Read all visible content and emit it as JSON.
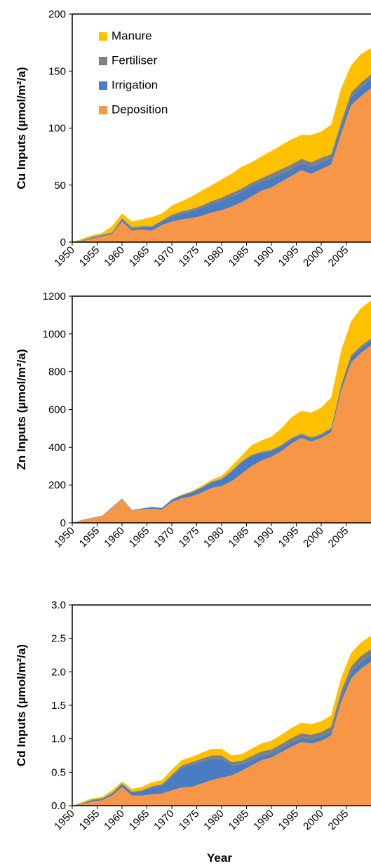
{
  "chart_data": [
    {
      "type": "stacked_area",
      "y_label": "Cu Inputs (µmol/m²/a)",
      "legend": "upper left",
      "x": [
        1950,
        1952,
        1954,
        1956,
        1958,
        1960,
        1962,
        1964,
        1966,
        1968,
        1970,
        1972,
        1974,
        1976,
        1978,
        1980,
        1982,
        1984,
        1986,
        1988,
        1990,
        1992,
        1994,
        1996,
        1998,
        2000,
        2002,
        2004,
        2006,
        2008,
        2010
      ],
      "xlim": [
        1950,
        2010
      ],
      "xticks": [
        1950,
        1955,
        1960,
        1965,
        1970,
        1975,
        1980,
        1985,
        1990,
        1995,
        2000,
        2005
      ],
      "ylim": [
        0,
        200
      ],
      "yticks": [
        0,
        50,
        100,
        150,
        200
      ],
      "series": [
        {
          "name": "Deposition",
          "color": "#f79646",
          "values": [
            0,
            1,
            3,
            5,
            7,
            18,
            10,
            11,
            10,
            15,
            18,
            20,
            21,
            23,
            26,
            28,
            31,
            35,
            40,
            45,
            48,
            53,
            58,
            63,
            60,
            64,
            68,
            95,
            120,
            128,
            135
          ]
        },
        {
          "name": "Irrigation",
          "color": "#4a7cc4",
          "values": [
            0,
            0.5,
            1,
            1,
            1,
            2,
            2,
            2,
            3,
            3,
            4,
            5,
            6,
            7,
            8,
            8,
            9,
            9,
            9,
            8,
            8,
            7,
            6,
            6,
            6,
            6,
            5,
            6,
            7,
            8,
            8
          ]
        },
        {
          "name": "Fertiliser",
          "color": "#808080",
          "values": [
            0,
            0.3,
            0.5,
            0.5,
            0.5,
            1,
            1,
            1,
            1,
            1,
            2,
            2,
            2,
            2,
            2,
            3,
            3,
            3,
            3,
            3,
            4,
            4,
            4,
            4,
            4,
            4,
            4,
            4,
            4,
            4,
            4
          ]
        },
        {
          "name": "Manure",
          "color": "#ffc000",
          "values": [
            0,
            1.2,
            1.5,
            1.5,
            5.5,
            4,
            5,
            6,
            8,
            6,
            8,
            9,
            11,
            13,
            14,
            16,
            17,
            19,
            18,
            19,
            20,
            21,
            22,
            21,
            24,
            23,
            26,
            30,
            24,
            25,
            23
          ]
        }
      ]
    },
    {
      "type": "stacked_area",
      "y_label": "Zn Inputs (µmol/m²/a)",
      "x": [
        1950,
        1952,
        1954,
        1956,
        1958,
        1960,
        1962,
        1964,
        1966,
        1968,
        1970,
        1972,
        1974,
        1976,
        1978,
        1980,
        1982,
        1984,
        1986,
        1988,
        1990,
        1992,
        1994,
        1996,
        1998,
        2000,
        2002,
        2004,
        2006,
        2008,
        2010
      ],
      "xlim": [
        1950,
        2010
      ],
      "xticks": [
        1950,
        1955,
        1960,
        1965,
        1970,
        1975,
        1980,
        1985,
        1990,
        1995,
        2000,
        2005
      ],
      "ylim": [
        0,
        1200
      ],
      "yticks": [
        0,
        200,
        400,
        600,
        800,
        1000,
        1200
      ],
      "series": [
        {
          "color": "#f79646",
          "values": [
            0,
            15,
            25,
            35,
            80,
            125,
            65,
            70,
            75,
            70,
            110,
            130,
            140,
            160,
            185,
            195,
            220,
            260,
            300,
            330,
            350,
            380,
            420,
            450,
            430,
            450,
            480,
            700,
            850,
            900,
            940
          ]
        },
        {
          "color": "#4a7cc4",
          "values": [
            0,
            1,
            2,
            2,
            3,
            3,
            3,
            5,
            8,
            8,
            12,
            15,
            20,
            25,
            30,
            35,
            50,
            60,
            55,
            40,
            30,
            25,
            20,
            15,
            15,
            12,
            15,
            20,
            25,
            25,
            25
          ]
        },
        {
          "color": "#808080",
          "values": [
            0,
            0,
            0,
            0,
            0,
            0,
            0,
            1,
            1,
            1,
            2,
            2,
            3,
            3,
            3,
            4,
            5,
            5,
            5,
            6,
            6,
            7,
            8,
            8,
            8,
            8,
            8,
            10,
            12,
            12,
            12
          ]
        },
        {
          "color": "#ffc000",
          "values": [
            0,
            0,
            0,
            0,
            0,
            0,
            0,
            0,
            0,
            1,
            2,
            3,
            5,
            8,
            10,
            15,
            25,
            30,
            50,
            60,
            70,
            88,
            110,
            120,
            130,
            140,
            160,
            180,
            180,
            200,
            200
          ]
        }
      ]
    },
    {
      "type": "stacked_area",
      "y_label": "Cd Inputs (µmol/m²/a)",
      "x_label": "Year",
      "x": [
        1950,
        1952,
        1954,
        1956,
        1958,
        1960,
        1962,
        1964,
        1966,
        1968,
        1970,
        1972,
        1974,
        1976,
        1978,
        1980,
        1982,
        1984,
        1986,
        1988,
        1990,
        1992,
        1994,
        1996,
        1998,
        2000,
        2002,
        2004,
        2006,
        2008,
        2010
      ],
      "xlim": [
        1950,
        2010
      ],
      "xticks": [
        1950,
        1955,
        1960,
        1965,
        1970,
        1975,
        1980,
        1985,
        1990,
        1995,
        2000,
        2005
      ],
      "ylim": [
        0,
        3
      ],
      "yticks": [
        {
          "value": 0,
          "label": "0.0"
        },
        0.5,
        {
          "value": 1,
          "label": "1.0"
        },
        1.5,
        {
          "value": 2,
          "label": "2.0"
        },
        2.5,
        {
          "value": 3,
          "label": "3.0"
        }
      ],
      "series": [
        {
          "color": "#f79646",
          "values": [
            0,
            0.02,
            0.06,
            0.08,
            0.15,
            0.28,
            0.15,
            0.15,
            0.17,
            0.18,
            0.23,
            0.27,
            0.28,
            0.33,
            0.38,
            0.42,
            0.45,
            0.52,
            0.6,
            0.68,
            0.72,
            0.8,
            0.88,
            0.95,
            0.93,
            0.97,
            1.05,
            1.55,
            1.9,
            2.05,
            2.15
          ]
        },
        {
          "color": "#4a7cc4",
          "values": [
            0,
            0.01,
            0.02,
            0.02,
            0.03,
            0.04,
            0.05,
            0.07,
            0.1,
            0.12,
            0.2,
            0.3,
            0.33,
            0.33,
            0.32,
            0.28,
            0.15,
            0.1,
            0.08,
            0.07,
            0.06,
            0.06,
            0.06,
            0.06,
            0.06,
            0.06,
            0.06,
            0.08,
            0.1,
            0.1,
            0.1
          ]
        },
        {
          "color": "#808080",
          "values": [
            0,
            0.005,
            0.01,
            0.01,
            0.01,
            0.01,
            0.01,
            0.01,
            0.02,
            0.02,
            0.03,
            0.03,
            0.04,
            0.04,
            0.05,
            0.05,
            0.05,
            0.05,
            0.06,
            0.06,
            0.06,
            0.06,
            0.07,
            0.07,
            0.07,
            0.07,
            0.07,
            0.08,
            0.08,
            0.09,
            0.09
          ]
        },
        {
          "color": "#ffc000",
          "values": [
            0,
            0.02,
            0.02,
            0.02,
            0.04,
            0.03,
            0.04,
            0.05,
            0.06,
            0.06,
            0.08,
            0.08,
            0.08,
            0.09,
            0.1,
            0.1,
            0.1,
            0.1,
            0.11,
            0.12,
            0.13,
            0.14,
            0.15,
            0.16,
            0.16,
            0.16,
            0.17,
            0.2,
            0.2,
            0.2,
            0.2
          ]
        }
      ]
    }
  ]
}
